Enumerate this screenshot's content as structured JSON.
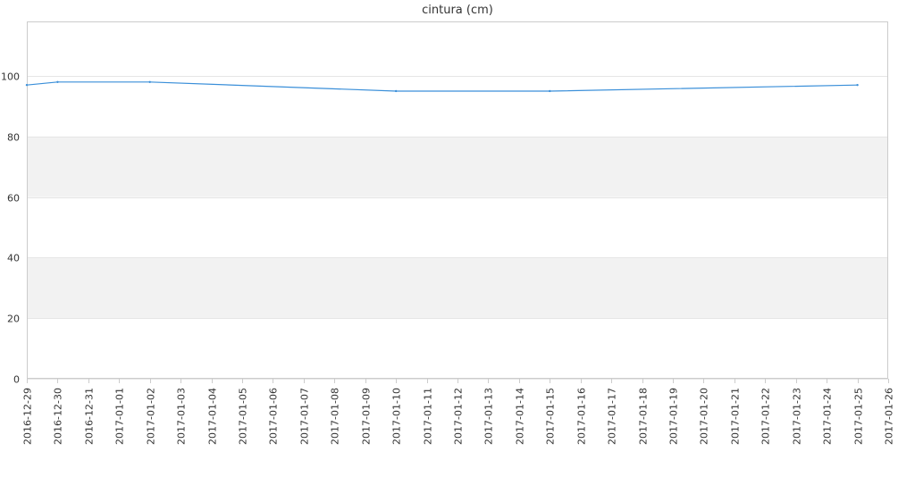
{
  "chart_data": {
    "type": "line",
    "title": "cintura (cm)",
    "xlabel": "",
    "ylabel": "",
    "ylim": [
      0,
      118
    ],
    "yticks": [
      0,
      20,
      40,
      60,
      80,
      100
    ],
    "xticks": [
      "2016-12-29",
      "2016-12-30",
      "2016-12-31",
      "2017-01-01",
      "2017-01-02",
      "2017-01-03",
      "2017-01-04",
      "2017-01-05",
      "2017-01-06",
      "2017-01-07",
      "2017-01-08",
      "2017-01-09",
      "2017-01-10",
      "2017-01-11",
      "2017-01-12",
      "2017-01-13",
      "2017-01-14",
      "2017-01-15",
      "2017-01-16",
      "2017-01-17",
      "2017-01-18",
      "2017-01-19",
      "2017-01-20",
      "2017-01-21",
      "2017-01-22",
      "2017-01-23",
      "2017-01-24",
      "2017-01-25",
      "2017-01-26"
    ],
    "grid": "horizontal, alternating bands",
    "legend": "none",
    "series": [
      {
        "color": "#3a8fd9",
        "points": [
          {
            "x": "2016-12-29",
            "y": 97
          },
          {
            "x": "2016-12-30",
            "y": 98
          },
          {
            "x": "2017-01-02",
            "y": 98
          },
          {
            "x": "2017-01-10",
            "y": 95
          },
          {
            "x": "2017-01-15",
            "y": 95
          },
          {
            "x": "2017-01-25",
            "y": 97
          }
        ]
      }
    ],
    "colors": {
      "band": "#f2f2f2",
      "grid": "#e6e6e6",
      "axis": "#cccccc",
      "text": "#333333",
      "line": "#3a8fd9"
    }
  }
}
